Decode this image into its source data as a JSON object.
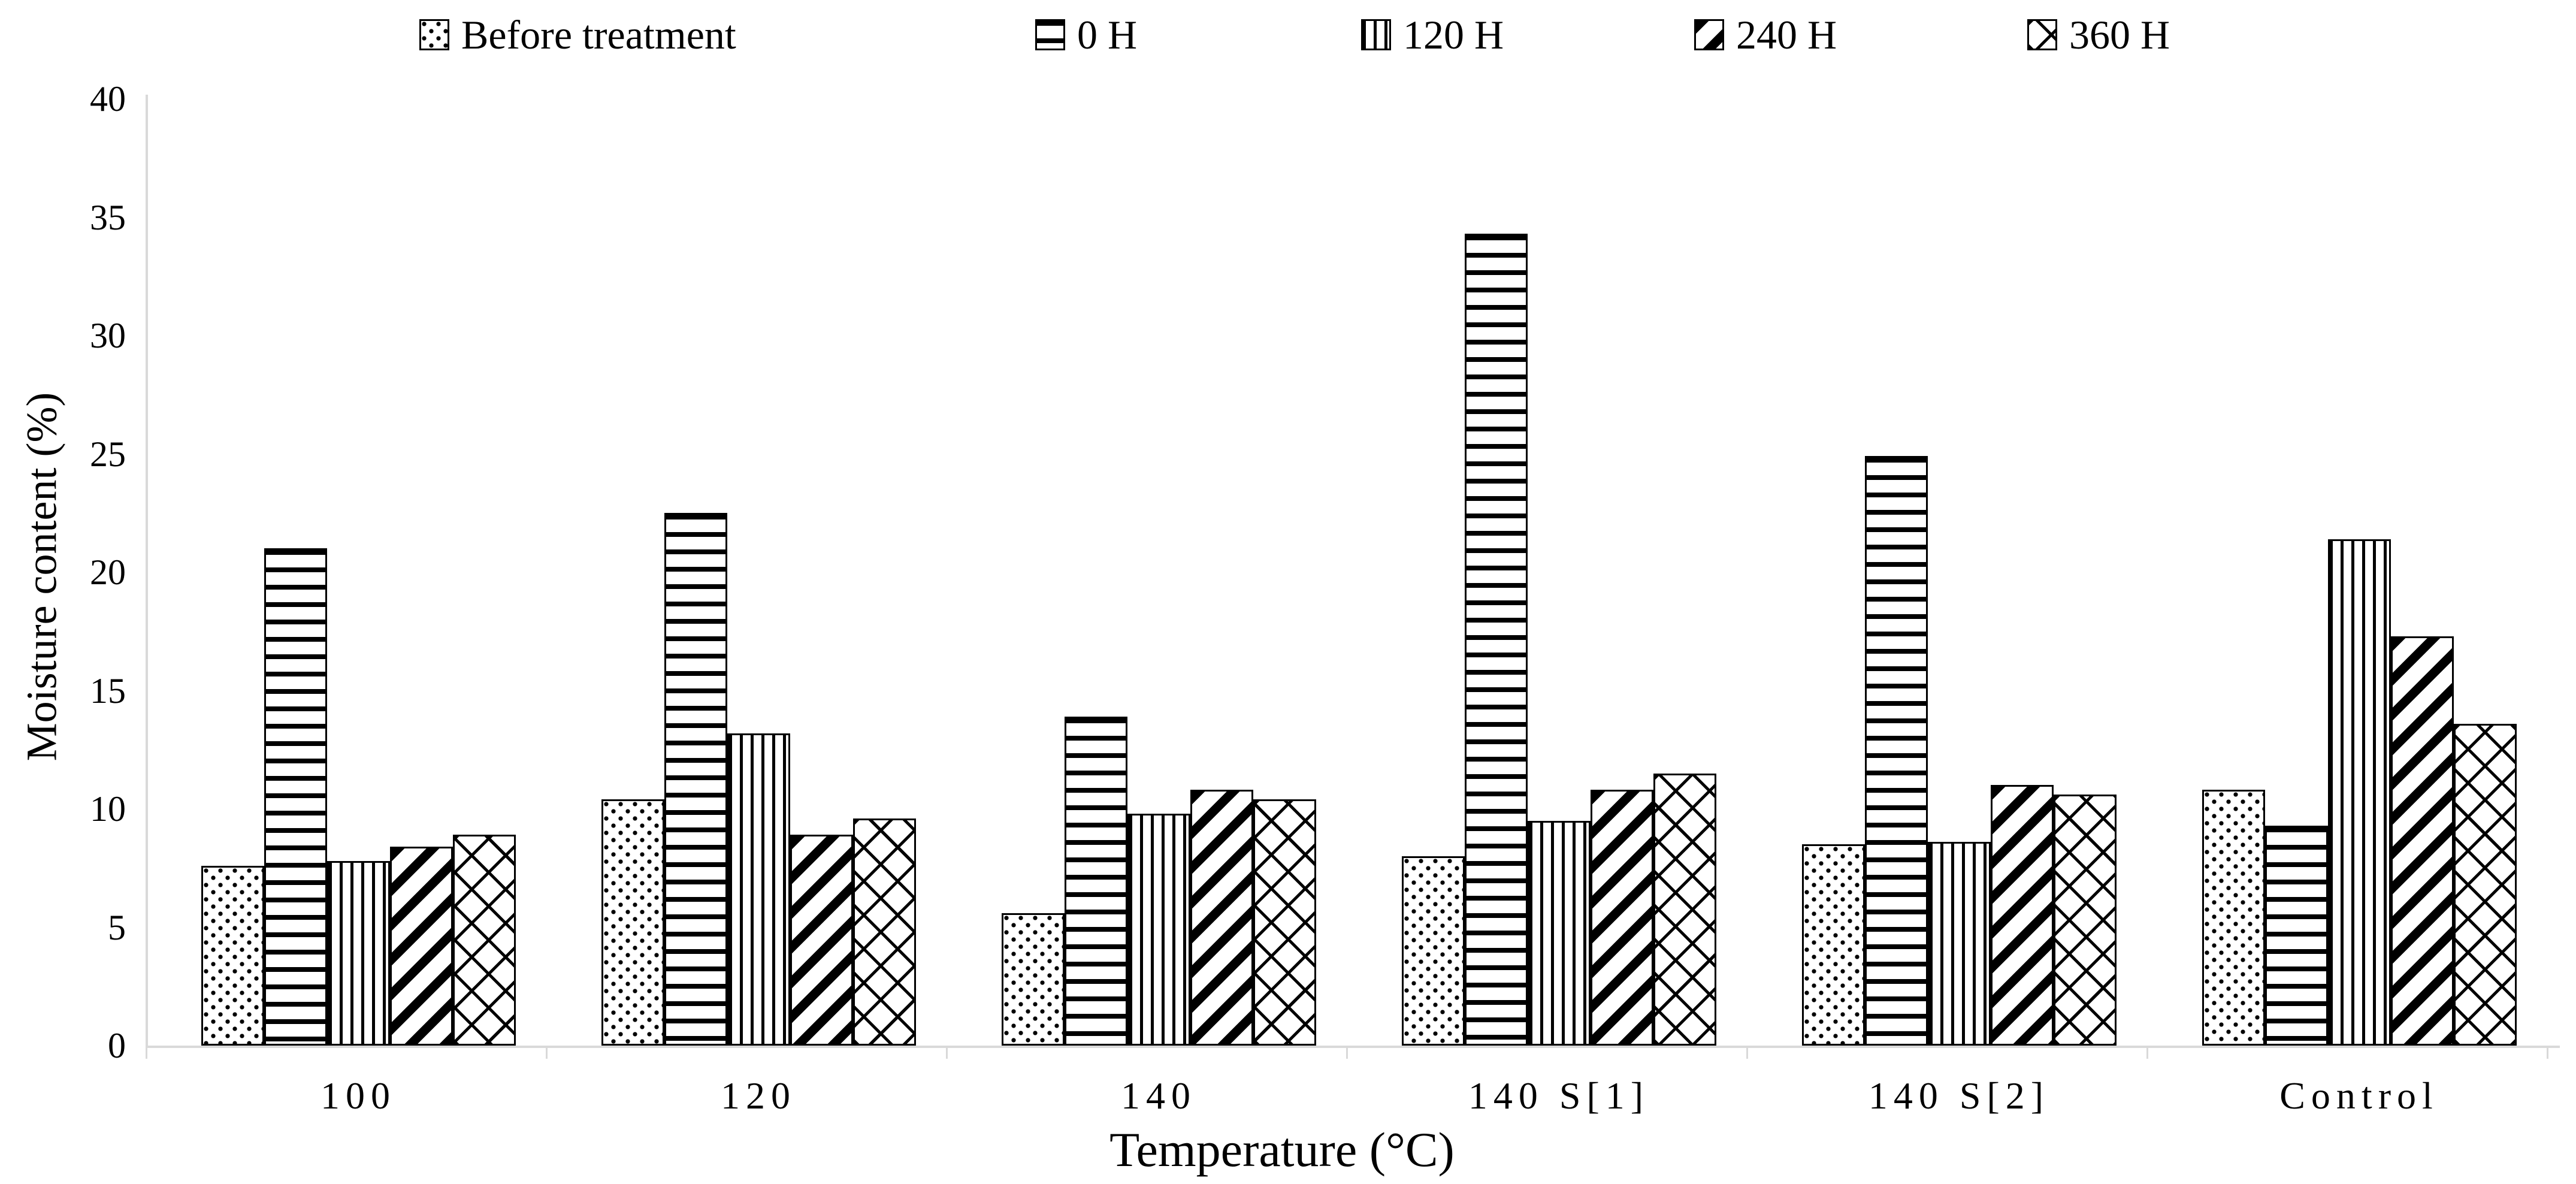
{
  "chart_data": {
    "type": "bar",
    "title": "",
    "categories": [
      "100",
      "120",
      "140",
      "140 S[1]",
      "140 S[2]",
      "Control"
    ],
    "series": [
      {
        "name": "Before treatment",
        "pattern": "dots",
        "values": [
          7.6,
          10.4,
          5.6,
          8.0,
          8.5,
          10.8
        ]
      },
      {
        "name": "0 H",
        "pattern": "horizontal-lines",
        "values": [
          21.0,
          22.5,
          13.9,
          34.3,
          24.9,
          9.3
        ]
      },
      {
        "name": "120 H",
        "pattern": "vertical-lines",
        "values": [
          7.8,
          13.2,
          9.8,
          9.5,
          8.6,
          21.4
        ]
      },
      {
        "name": "240 H",
        "pattern": "diagonal-stripes",
        "values": [
          8.4,
          8.9,
          10.8,
          10.8,
          11.0,
          17.3
        ]
      },
      {
        "name": "360 H",
        "pattern": "diamond-lattice",
        "values": [
          8.9,
          9.6,
          10.4,
          11.5,
          10.6,
          13.6
        ]
      }
    ],
    "xlabel": "Temperature (°C)",
    "ylabel": "Moisture content (%)",
    "ylim": [
      0,
      40
    ],
    "yticks": [
      0,
      5,
      10,
      15,
      20,
      25,
      30,
      35,
      40
    ],
    "ytick_step": 5,
    "legend_position": "top",
    "grid": false,
    "colors": {
      "bar_fill": "#ffffff",
      "bar_stroke": "#000000",
      "axis_line": "#d9d9d9",
      "text": "#000000"
    }
  }
}
